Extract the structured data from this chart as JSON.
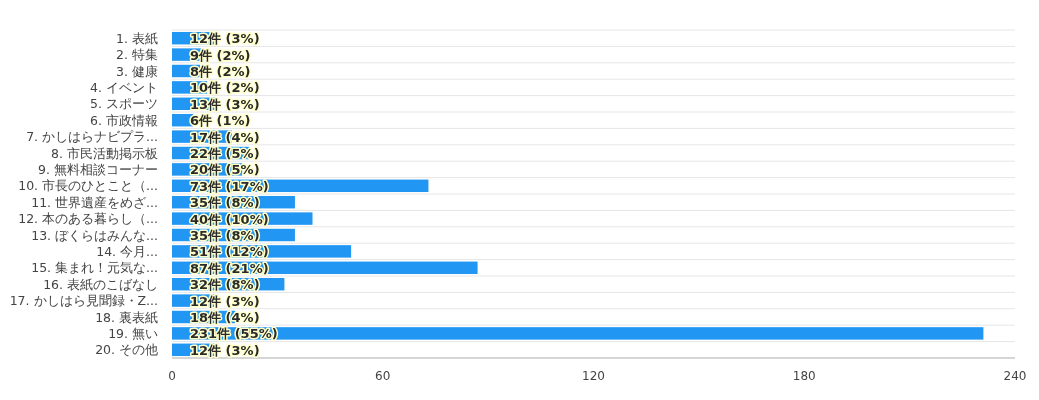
{
  "chart_data": {
    "type": "bar",
    "orientation": "horizontal",
    "categories": [
      "1. 表紙",
      "2. 特集",
      "3. 健康",
      "4. イベント",
      "5. スポーツ",
      "6. 市政情報",
      "7. かしはらナビプラ...",
      "8. 市民活動掲示板",
      "9. 無料相談コーナー",
      "10. 市長のひとこと（...",
      "11. 世界遺産をめざ...",
      "12. 本のある暮らし（...",
      "13. ぼくらはみんな...",
      "14. 今月...",
      "15. 集まれ！元気な...",
      "16. 表紙のこばなし",
      "17. かしはら見聞録・Z...",
      "18. 裏表紙",
      "19. 無い",
      "20. その他"
    ],
    "values": [
      12,
      9,
      8,
      10,
      13,
      6,
      17,
      22,
      20,
      73,
      35,
      40,
      35,
      51,
      87,
      32,
      12,
      18,
      231,
      12
    ],
    "value_labels": [
      "12件 (3%)",
      "9件 (2%)",
      "8件 (2%)",
      "10件 (2%)",
      "13件 (3%)",
      "6件 (1%)",
      "17件 (4%)",
      "22件 (5%)",
      "20件 (5%)",
      "73件 (17%)",
      "35件 (8%)",
      "40件 (10%)",
      "35件 (8%)",
      "51件 (12%)",
      "87件 (21%)",
      "32件 (8%)",
      "12件 (3%)",
      "18件 (4%)",
      "231件 (55%)",
      "12件 (3%)"
    ],
    "color": "#2196f3",
    "xlim": [
      0,
      240
    ],
    "xticks": [
      0,
      60,
      120,
      180,
      240
    ],
    "grid": "y"
  }
}
